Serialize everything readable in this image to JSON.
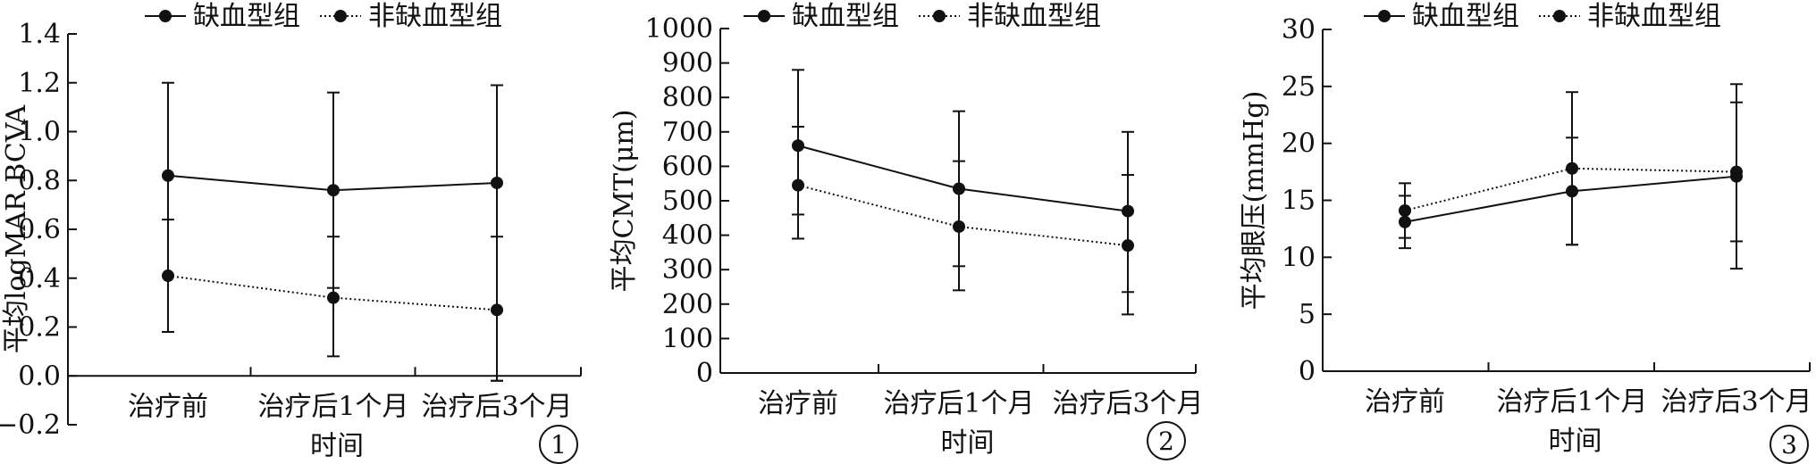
{
  "chart_data": [
    {
      "type": "line",
      "panel_label": "1",
      "categories": [
        "治疗前",
        "治疗后1个月",
        "治疗后3个月"
      ],
      "xlabel": "时间",
      "ylabel": "平均logMAR BCVA",
      "ylim": [
        -0.2,
        1.4
      ],
      "yticks": [
        "−0.2",
        "0.0",
        "0.2",
        "0.4",
        "0.6",
        "0.8",
        "1.0",
        "1.2",
        "1.4"
      ],
      "legend_position": "top",
      "series": [
        {
          "name": "缺血型组",
          "style": "solid",
          "values": [
            0.82,
            0.76,
            0.79
          ],
          "err_low": [
            0.18,
            0.36,
            -0.02
          ],
          "err_high": [
            1.2,
            1.16,
            1.19
          ]
        },
        {
          "name": "非缺血型组",
          "style": "dotted",
          "values": [
            0.41,
            0.32,
            0.27
          ],
          "err_low": [
            0.18,
            0.08,
            -0.02
          ],
          "err_high": [
            0.64,
            0.57,
            0.57
          ]
        }
      ]
    },
    {
      "type": "line",
      "panel_label": "2",
      "categories": [
        "治疗前",
        "治疗后1个月",
        "治疗后3个月"
      ],
      "xlabel": "时间",
      "ylabel": "平均CMT(μm)",
      "ylim": [
        0,
        1000
      ],
      "yticks": [
        "0",
        "100",
        "200",
        "300",
        "400",
        "500",
        "600",
        "700",
        "800",
        "900",
        "1000"
      ],
      "legend_position": "top",
      "series": [
        {
          "name": "缺血型组",
          "style": "solid",
          "values": [
            660,
            535,
            470
          ],
          "err_low": [
            460,
            310,
            235
          ],
          "err_high": [
            880,
            760,
            700
          ]
        },
        {
          "name": "非缺血型组",
          "style": "dotted",
          "values": [
            545,
            425,
            370
          ],
          "err_low": [
            390,
            240,
            170
          ],
          "err_high": [
            715,
            615,
            575
          ]
        }
      ]
    },
    {
      "type": "line",
      "panel_label": "3",
      "categories": [
        "治疗前",
        "治疗后1个月",
        "治疗后3个月"
      ],
      "xlabel": "时间",
      "ylabel": "平均眼压(mmHg)",
      "ylim": [
        0,
        30
      ],
      "yticks": [
        "0",
        "5",
        "10",
        "15",
        "20",
        "25",
        "30"
      ],
      "legend_position": "top",
      "series": [
        {
          "name": "缺血型组",
          "style": "solid",
          "values": [
            13.1,
            15.8,
            17.1
          ],
          "err_low": [
            10.8,
            11.1,
            9.0
          ],
          "err_high": [
            15.4,
            20.5,
            25.2
          ]
        },
        {
          "name": "非缺血型组",
          "style": "dotted",
          "values": [
            14.1,
            17.8,
            17.5
          ],
          "err_low": [
            11.7,
            11.1,
            11.4
          ],
          "err_high": [
            16.5,
            24.5,
            23.6
          ]
        }
      ]
    }
  ]
}
